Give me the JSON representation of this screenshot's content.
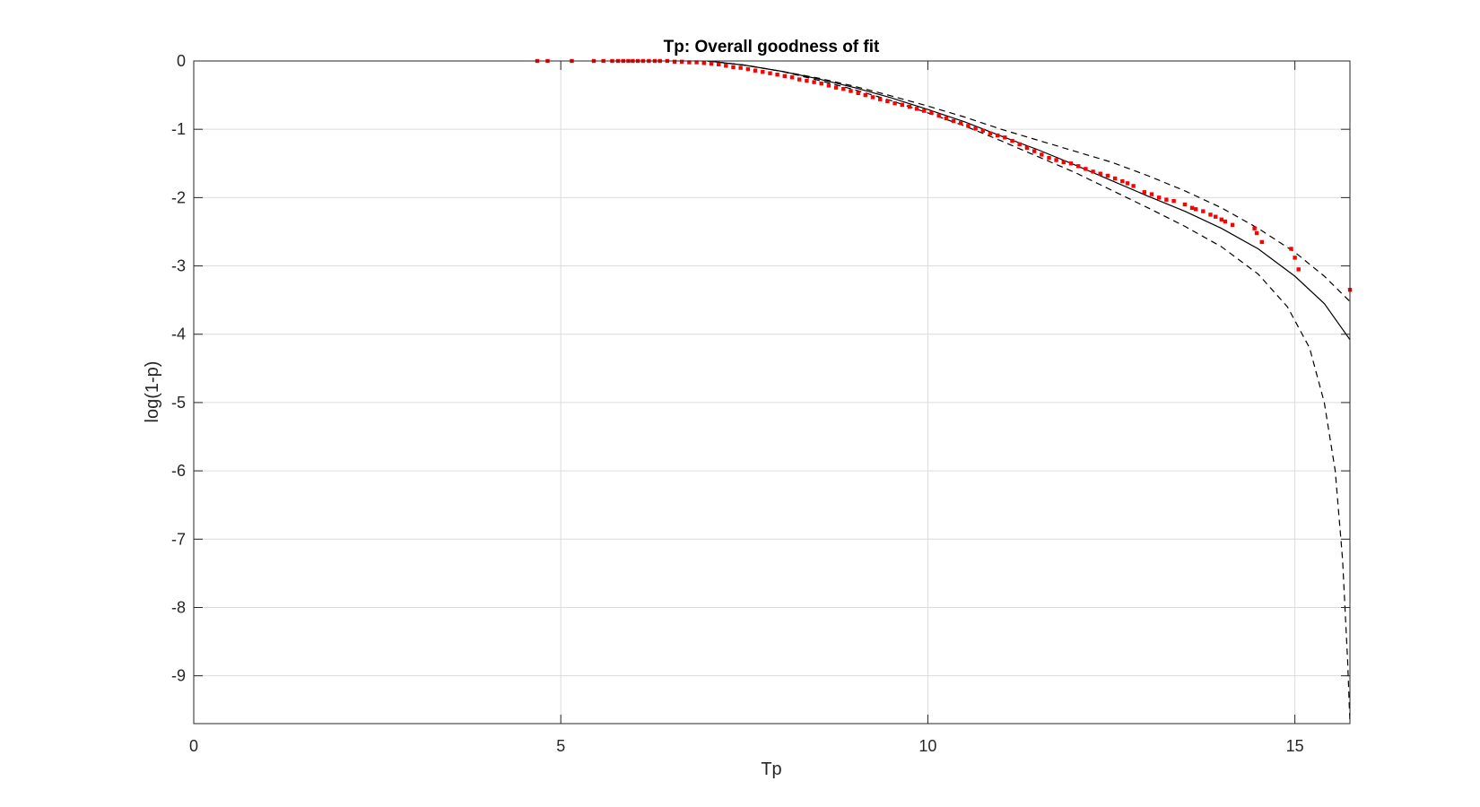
{
  "chart_data": {
    "type": "scatter",
    "title": "Tp: Overall goodness of fit",
    "xlabel": "Tp",
    "ylabel": "log(1-p)",
    "xlim": [
      0,
      15.75
    ],
    "ylim": [
      -9.7,
      0
    ],
    "xticks": [
      0,
      5,
      10,
      15
    ],
    "yticks": [
      0,
      -1,
      -2,
      -3,
      -4,
      -5,
      -6,
      -7,
      -8,
      -9
    ],
    "xtick_labels": [
      "0",
      "5",
      "10",
      "15"
    ],
    "ytick_labels": [
      "0",
      "-1",
      "-2",
      "-3",
      "-4",
      "-5",
      "-6",
      "-7",
      "-8",
      "-9"
    ],
    "grid": true,
    "colors": {
      "points": "#ff0000",
      "fit": "#000000",
      "bounds": "#000000",
      "grid": "#dcdcdc"
    },
    "series": [
      {
        "kind": "points",
        "x": [
          4.68,
          4.82,
          5.15,
          5.45,
          5.58,
          5.7,
          5.78,
          5.85,
          5.92,
          5.98,
          6.05,
          6.12,
          6.2,
          6.28,
          6.35,
          6.45,
          6.55,
          6.65,
          6.75,
          6.85,
          6.95,
          7.05,
          7.15,
          7.25,
          7.35,
          7.45,
          7.55,
          7.65,
          7.75,
          7.85,
          7.95,
          8.05,
          8.15,
          8.25,
          8.35,
          8.45,
          8.55,
          8.65,
          8.75,
          8.85,
          8.95,
          9.05,
          9.15,
          9.25,
          9.35,
          9.45,
          9.55,
          9.65,
          9.75,
          9.85,
          9.95,
          10.05,
          10.15,
          10.25,
          10.35,
          10.45,
          10.55,
          10.65,
          10.75,
          10.85,
          10.95,
          11.05,
          11.15,
          11.25,
          11.35,
          11.45,
          11.55,
          11.65,
          11.75,
          11.85,
          11.95,
          12.05,
          12.15,
          12.25,
          12.35,
          12.45,
          12.55,
          12.65,
          12.72,
          12.8,
          12.95,
          13.05,
          13.15,
          13.25,
          13.35,
          13.5,
          13.6,
          13.65,
          13.75,
          13.85,
          13.92,
          14.0,
          14.05,
          14.15,
          14.45,
          14.48,
          14.55,
          14.95,
          15.0,
          15.05,
          15.75
        ],
        "y": [
          0,
          0,
          0,
          0,
          0,
          0,
          0,
          0,
          0,
          0,
          0,
          0,
          0,
          0,
          0,
          0,
          -0.01,
          -0.01,
          -0.02,
          -0.02,
          -0.03,
          -0.04,
          -0.05,
          -0.07,
          -0.09,
          -0.1,
          -0.12,
          -0.14,
          -0.16,
          -0.18,
          -0.2,
          -0.22,
          -0.24,
          -0.27,
          -0.29,
          -0.31,
          -0.33,
          -0.36,
          -0.39,
          -0.41,
          -0.44,
          -0.47,
          -0.5,
          -0.53,
          -0.56,
          -0.59,
          -0.62,
          -0.64,
          -0.67,
          -0.7,
          -0.73,
          -0.76,
          -0.8,
          -0.84,
          -0.88,
          -0.91,
          -0.95,
          -0.99,
          -1.02,
          -1.06,
          -1.09,
          -1.12,
          -1.17,
          -1.22,
          -1.27,
          -1.32,
          -1.37,
          -1.42,
          -1.45,
          -1.48,
          -1.5,
          -1.54,
          -1.58,
          -1.62,
          -1.65,
          -1.68,
          -1.72,
          -1.76,
          -1.79,
          -1.83,
          -1.92,
          -1.95,
          -2.0,
          -2.03,
          -2.05,
          -2.1,
          -2.15,
          -2.17,
          -2.2,
          -2.25,
          -2.28,
          -2.32,
          -2.35,
          -2.4,
          -2.45,
          -2.52,
          -2.65,
          -2.75,
          -2.88,
          -3.05,
          -3.35
        ]
      },
      {
        "kind": "fit",
        "x": [
          7.0,
          7.5,
          8.0,
          8.5,
          9.0,
          9.5,
          10.0,
          10.5,
          11.0,
          11.5,
          12.0,
          12.5,
          13.0,
          13.5,
          14.0,
          14.5,
          15.0,
          15.4,
          15.75
        ],
        "y": [
          0,
          -0.06,
          -0.15,
          -0.26,
          -0.39,
          -0.54,
          -0.71,
          -0.89,
          -1.1,
          -1.3,
          -1.52,
          -1.75,
          -1.98,
          -2.2,
          -2.45,
          -2.75,
          -3.15,
          -3.55,
          -4.08
        ]
      },
      {
        "kind": "upper-bound",
        "x": [
          7.0,
          7.5,
          8.0,
          8.5,
          9.0,
          9.5,
          10.0,
          10.5,
          11.0,
          11.5,
          12.0,
          12.5,
          13.0,
          13.5,
          14.0,
          14.5,
          15.0,
          15.4,
          15.75
        ],
        "y": [
          0,
          -0.06,
          -0.15,
          -0.25,
          -0.37,
          -0.51,
          -0.66,
          -0.82,
          -1.0,
          -1.16,
          -1.32,
          -1.48,
          -1.68,
          -1.9,
          -2.15,
          -2.45,
          -2.8,
          -3.15,
          -3.52
        ]
      },
      {
        "kind": "lower-bound",
        "x": [
          7.0,
          7.5,
          8.0,
          8.5,
          9.0,
          9.5,
          10.0,
          10.5,
          11.0,
          11.5,
          12.0,
          12.5,
          13.0,
          13.5,
          14.0,
          14.5,
          14.9,
          15.2,
          15.4,
          15.55,
          15.65,
          15.72,
          15.75
        ],
        "y": [
          0,
          -0.06,
          -0.15,
          -0.28,
          -0.42,
          -0.58,
          -0.76,
          -0.95,
          -1.17,
          -1.4,
          -1.63,
          -1.89,
          -2.15,
          -2.42,
          -2.72,
          -3.12,
          -3.6,
          -4.2,
          -5.0,
          -6.0,
          -7.3,
          -8.8,
          -9.7
        ]
      }
    ]
  }
}
